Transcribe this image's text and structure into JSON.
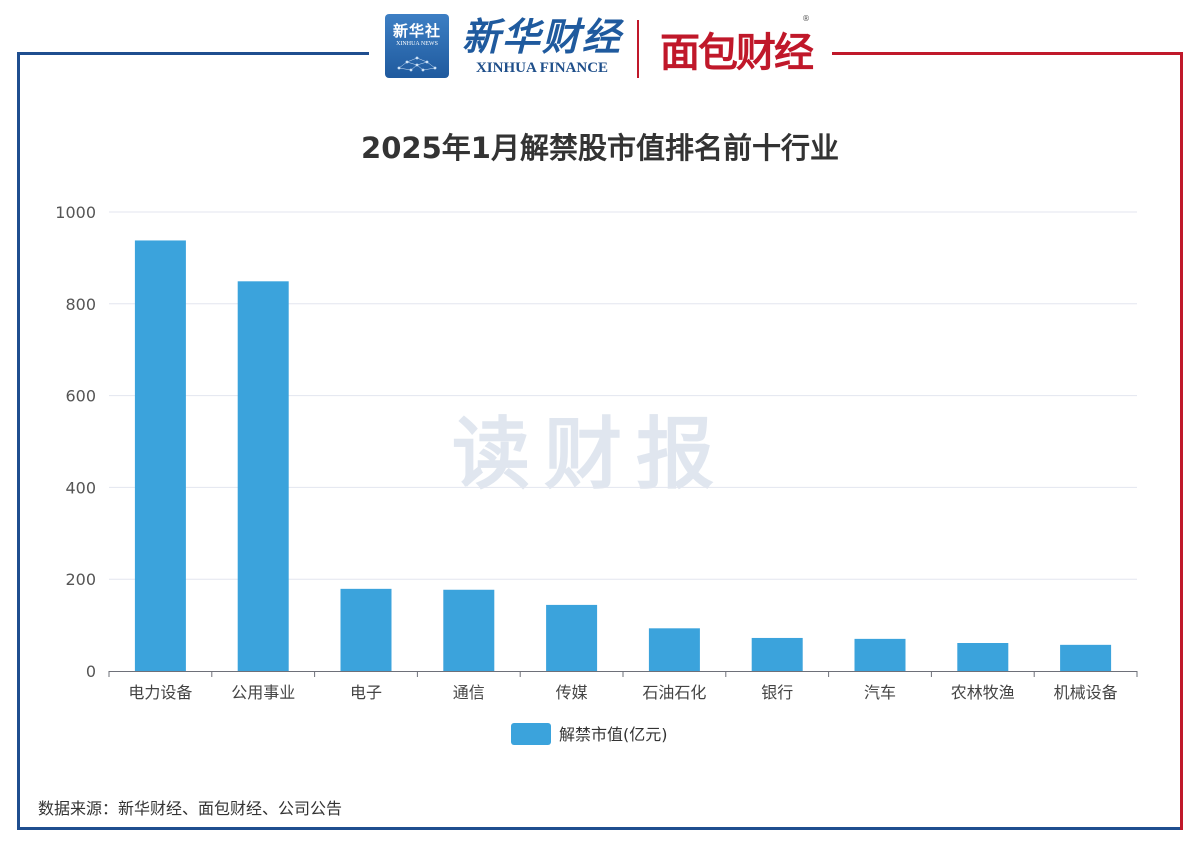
{
  "header": {
    "xinhua_badge_text": "新华社",
    "xinhua_badge_sub": "XINHUA NEWS",
    "xinhua_finance_cn": "新华财经",
    "xinhua_finance_en": "XINHUA FINANCE",
    "mianbao_cn": "面包财经",
    "mianbao_reg": "®"
  },
  "watermark": "读财报",
  "source": "数据来源：新华财经、面包财经、公司公告",
  "colors": {
    "bar": "#3ba3dc",
    "frame_left": "#1f4e8f",
    "frame_right": "#c0182a",
    "grid": "#e3e6ef",
    "axis": "#6e7079"
  },
  "chart_data": {
    "type": "bar",
    "title": "2025年1月解禁股市值排名前十行业",
    "categories": [
      "电力设备",
      "公用事业",
      "电子",
      "通信",
      "传媒",
      "石油石化",
      "银行",
      "汽车",
      "农林牧渔",
      "机械设备"
    ],
    "series": [
      {
        "name": "解禁市值(亿元)",
        "values": [
          938,
          849,
          179,
          177,
          144,
          93,
          72,
          70,
          61,
          57
        ]
      }
    ],
    "ylim": [
      0,
      1000
    ],
    "yticks": [
      0,
      200,
      400,
      600,
      800,
      1000
    ],
    "grid": true,
    "legend": "bottom-center"
  }
}
